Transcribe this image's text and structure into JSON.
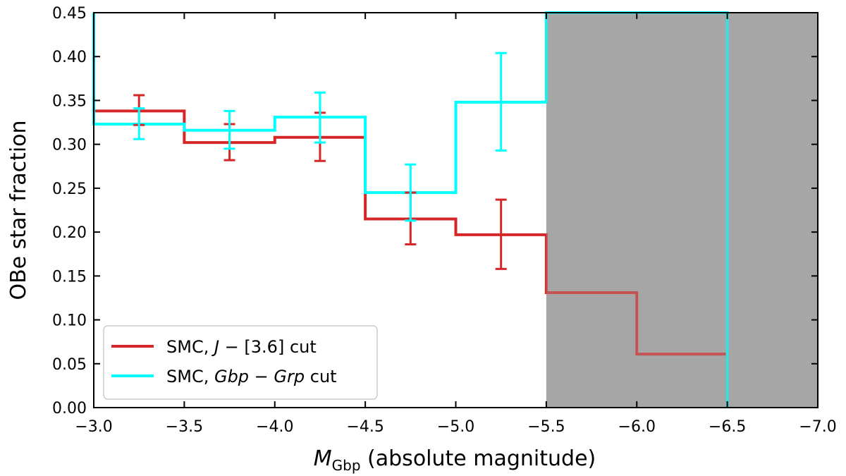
{
  "chart_data": {
    "type": "step",
    "title": "",
    "xlabel_main": "M",
    "xlabel_sub": "Gbp",
    "xlabel_rest": " (absolute magnitude)",
    "ylabel": "OBe star fraction",
    "xlim": [
      -3.0,
      -7.0
    ],
    "ylim": [
      0.0,
      0.45
    ],
    "xticks": [
      -3.0,
      -3.5,
      -4.0,
      -4.5,
      -5.0,
      -5.5,
      -6.0,
      -6.5,
      -7.0
    ],
    "xtick_labels": [
      "−3.0",
      "−3.5",
      "−4.0",
      "−4.5",
      "−5.0",
      "−5.5",
      "−6.0",
      "−6.5",
      "−7.0"
    ],
    "yticks": [
      0.0,
      0.05,
      0.1,
      0.15,
      0.2,
      0.25,
      0.3,
      0.35,
      0.4,
      0.45
    ],
    "ytick_labels": [
      "0.00",
      "0.05",
      "0.10",
      "0.15",
      "0.20",
      "0.25",
      "0.30",
      "0.35",
      "0.40",
      "0.45"
    ],
    "shaded_region": {
      "x_from": -5.5,
      "x_to": -7.0,
      "color": "#a6a6a6"
    },
    "series": [
      {
        "name": "SMC, J − [3.6] cut",
        "legend_roman_1": "SMC, ",
        "legend_italic_1": "J",
        "legend_roman_2": " − [3.6] cut",
        "legend_italic_2": "",
        "legend_roman_3": "",
        "color": "#d62728",
        "bin_edges": [
          -3.0,
          -3.5,
          -4.0,
          -4.5,
          -5.0,
          -5.5,
          -6.0,
          -6.5
        ],
        "values": [
          0.338,
          0.302,
          0.308,
          0.215,
          0.197,
          0.131,
          0.061
        ],
        "left_start": 0.338,
        "right_end": 0.0,
        "errorbars": [
          {
            "x": -3.25,
            "y": 0.338,
            "lower": 0.322,
            "upper": 0.356
          },
          {
            "x": -3.75,
            "y": 0.302,
            "lower": 0.282,
            "upper": 0.323
          },
          {
            "x": -4.25,
            "y": 0.308,
            "lower": 0.281,
            "upper": 0.336
          },
          {
            "x": -4.75,
            "y": 0.215,
            "lower": 0.186,
            "upper": 0.245
          },
          {
            "x": -5.25,
            "y": 0.197,
            "lower": 0.158,
            "upper": 0.237
          }
        ]
      },
      {
        "name": "SMC, Gbp − Grp cut",
        "legend_roman_1": "SMC, ",
        "legend_italic_1": "Gbp",
        "legend_roman_2": " − ",
        "legend_italic_2": "Grp",
        "legend_roman_3": " cut",
        "color": "#00ffff",
        "bin_edges": [
          -3.0,
          -3.5,
          -4.0,
          -4.5,
          -5.0,
          -5.5,
          -6.0,
          -6.5
        ],
        "values": [
          0.323,
          0.316,
          0.331,
          0.245,
          0.348,
          0.45,
          0.45
        ],
        "left_start": 0.45,
        "right_end": 0.0,
        "errorbars": [
          {
            "x": -3.25,
            "y": 0.323,
            "lower": 0.306,
            "upper": 0.341
          },
          {
            "x": -3.75,
            "y": 0.316,
            "lower": 0.295,
            "upper": 0.338
          },
          {
            "x": -4.25,
            "y": 0.331,
            "lower": 0.302,
            "upper": 0.359
          },
          {
            "x": -4.75,
            "y": 0.245,
            "lower": 0.213,
            "upper": 0.277
          },
          {
            "x": -5.25,
            "y": 0.348,
            "lower": 0.293,
            "upper": 0.404
          }
        ]
      }
    ],
    "legend_location": "lower-left"
  }
}
